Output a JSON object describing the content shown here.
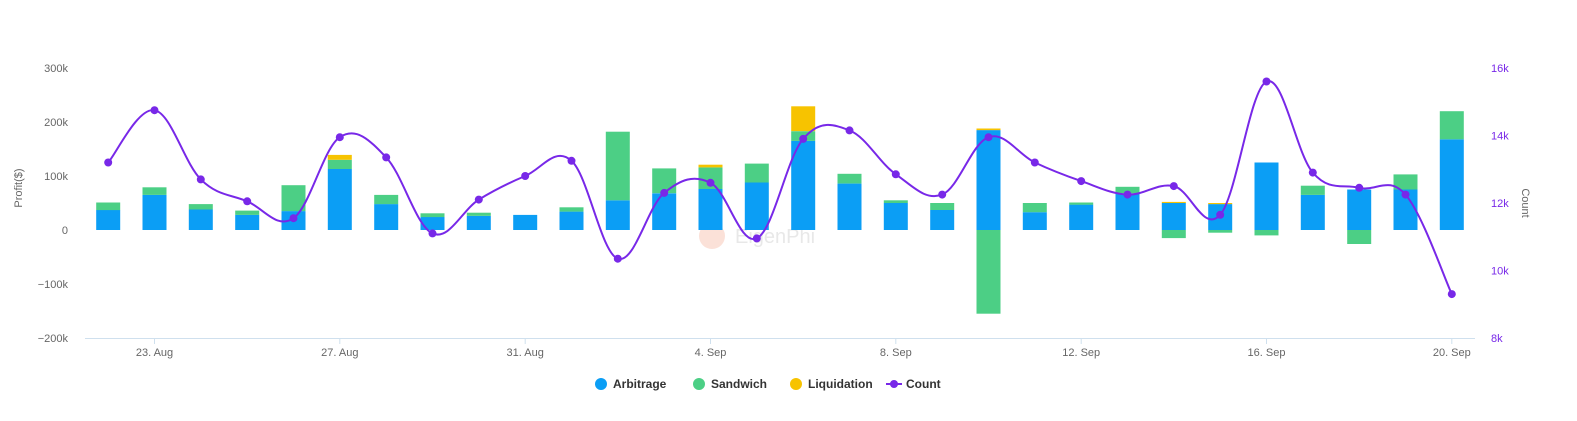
{
  "watermark": "EigenPhi",
  "colors": {
    "arbitrage": "#0b9ef5",
    "sandwich": "#4ccf85",
    "liquidation": "#f7c300",
    "count": "#7828e8",
    "axis": "#666666",
    "baseline": "#cfe0ee"
  },
  "chart_data": {
    "type": "bar",
    "stacked": true,
    "dates": [
      "22. Aug",
      "23. Aug",
      "24. Aug",
      "25. Aug",
      "26. Aug",
      "27. Aug",
      "28. Aug",
      "29. Aug",
      "30. Aug",
      "31. Aug",
      "1. Sep",
      "2. Sep",
      "3. Sep",
      "4. Sep",
      "5. Sep",
      "6. Sep",
      "7. Sep",
      "8. Sep",
      "9. Sep",
      "10. Sep",
      "11. Sep",
      "12. Sep",
      "13. Sep",
      "14. Sep",
      "15. Sep",
      "16. Sep",
      "17. Sep",
      "18. Sep",
      "19. Sep",
      "20. Sep"
    ],
    "x_tick_labels": [
      "23. Aug",
      "27. Aug",
      "31. Aug",
      "4. Sep",
      "8. Sep",
      "12. Sep",
      "16. Sep",
      "20. Sep"
    ],
    "ylabel": "Profit($)",
    "ylabel_right": "Count",
    "ylim": [
      -200000,
      300000
    ],
    "y_ticks": [
      {
        "value": 300000,
        "label": "300k"
      },
      {
        "value": 200000,
        "label": "200k"
      },
      {
        "value": 100000,
        "label": "100k"
      },
      {
        "value": 0,
        "label": "0"
      },
      {
        "value": -100000,
        "label": "−100k"
      },
      {
        "value": -200000,
        "label": "−200k"
      }
    ],
    "ylim_right": [
      8000,
      16000
    ],
    "y_ticks_right": [
      {
        "value": 16000,
        "label": "16k"
      },
      {
        "value": 14000,
        "label": "14k"
      },
      {
        "value": 12000,
        "label": "12k"
      },
      {
        "value": 10000,
        "label": "10k"
      },
      {
        "value": 8000,
        "label": "8k"
      }
    ],
    "legend_position": "bottom-center",
    "series": [
      {
        "name": "Arbitrage",
        "kind": "bar",
        "values": [
          37000,
          65000,
          38000,
          28000,
          35000,
          113000,
          48000,
          24000,
          26000,
          28000,
          34000,
          55000,
          68000,
          76000,
          88000,
          165000,
          86000,
          50000,
          37000,
          185000,
          33000,
          47000,
          68000,
          50000,
          48000,
          125000,
          65000,
          75000,
          75000,
          168000
        ]
      },
      {
        "name": "Sandwich",
        "kind": "bar",
        "values": [
          14000,
          14000,
          10000,
          8000,
          48000,
          17000,
          17000,
          7000,
          6000,
          0,
          8000,
          127000,
          46000,
          40000,
          35000,
          18000,
          18000,
          5000,
          13000,
          -155000,
          17000,
          4000,
          12000,
          -15000,
          -5000,
          -10000,
          17000,
          -26000,
          28000,
          52000
        ]
      },
      {
        "name": "Liquidation",
        "kind": "bar",
        "values": [
          0,
          0,
          0,
          0,
          0,
          9000,
          0,
          0,
          0,
          0,
          0,
          0,
          0,
          5000,
          0,
          46000,
          0,
          0,
          0,
          3000,
          0,
          0,
          0,
          2000,
          2000,
          0,
          0,
          0,
          0,
          0
        ]
      },
      {
        "name": "Count",
        "kind": "line",
        "values": [
          13200,
          14750,
          12700,
          12050,
          11550,
          13950,
          13350,
          11100,
          12100,
          12800,
          13250,
          10350,
          12300,
          12600,
          10950,
          13900,
          14150,
          12850,
          12250,
          13950,
          13200,
          12650,
          12250,
          12500,
          11650,
          15600,
          12900,
          12450,
          12250,
          9300
        ]
      }
    ]
  }
}
